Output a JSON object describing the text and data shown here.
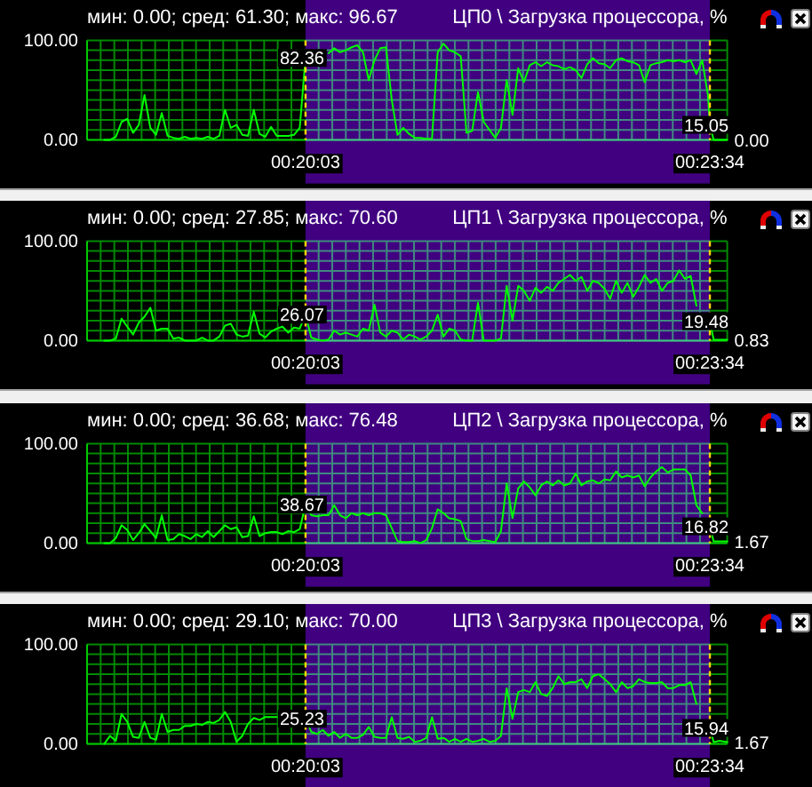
{
  "chart_data": [
    {
      "type": "line",
      "title": "ЦП0 \\ Загрузка процессора, %",
      "subtitle": "мин: 0.00; сред: 61.30; макс: 96.67",
      "color": "#00ff00",
      "x": [
        0.305,
        0.30583,
        0.30667,
        0.3075,
        0.30833,
        0.30917,
        0.31,
        0.31083,
        0.31167,
        0.3125,
        0.31333,
        0.31417,
        0.315,
        0.31583,
        0.31667,
        0.3175,
        0.31833,
        0.31917,
        0.32,
        0.32083,
        0.32167,
        0.3225,
        0.32333,
        0.32417,
        0.325,
        0.32583,
        0.32667,
        0.3275,
        0.32833,
        0.32917,
        0.33,
        0.33083,
        0.33167,
        0.3325,
        0.33333,
        0.33417,
        0.335,
        0.33583,
        0.33667,
        0.3375,
        0.33833,
        0.33917,
        0.34,
        0.34083,
        0.34167,
        0.3425,
        0.34333,
        0.34417,
        0.345,
        0.34583,
        0.34667,
        0.3475,
        0.34833,
        0.34917,
        0.35,
        0.35083,
        0.35167,
        0.3525,
        0.35333,
        0.35417,
        0.355,
        0.35583,
        0.35667,
        0.3575,
        0.35833,
        0.35917,
        0.36,
        0.36083,
        0.36167,
        0.3625,
        0.36333,
        0.36417,
        0.365,
        0.36583,
        0.36667,
        0.3675,
        0.36833,
        0.36917,
        0.37,
        0.37083,
        0.37167,
        0.3725,
        0.37333,
        0.37417,
        0.375,
        0.37583,
        0.37667,
        0.3775,
        0.37833,
        0.37917,
        0.38,
        0.38083,
        0.38167,
        0.3825,
        0.38333,
        0.38417,
        0.385,
        0.38583,
        0.38667,
        0.3875,
        0.38833,
        0.38917,
        0.39,
        0.39083,
        0.39167,
        0.3925,
        0.39278,
        0.39333,
        0.39417,
        0.3953
      ],
      "values": [
        0,
        0,
        3,
        18,
        21,
        7,
        15,
        45,
        12,
        5,
        27,
        4,
        2,
        1,
        3,
        1,
        2,
        1,
        3,
        1,
        4,
        30,
        12,
        15,
        5,
        4,
        30,
        6,
        3,
        13,
        4,
        4,
        4,
        5,
        12,
        82.36,
        null,
        null,
        null,
        87,
        92,
        88,
        90,
        93,
        95,
        88,
        60,
        80,
        92,
        93,
        40,
        5,
        12,
        6,
        2,
        2,
        1,
        1,
        88,
        96.67,
        90,
        88,
        84,
        7,
        9,
        48,
        18,
        10,
        2,
        12,
        60,
        25,
        72,
        58,
        75,
        78,
        74,
        78,
        75,
        74,
        71,
        73,
        70,
        62,
        76,
        82,
        77,
        76,
        72,
        80,
        82,
        79,
        78,
        75,
        58,
        75,
        77,
        78,
        80,
        79,
        80,
        78,
        80,
        66,
        80,
        45,
        15.05,
        0,
        0,
        0
      ],
      "xlim": [
        0.3025,
        0.3953
      ],
      "xticks": [
        {
          "value": 0.3025,
          "label": null
        },
        {
          "value": 0.30447,
          "label": null
        },
        {
          "value": 0.30645,
          "label": null
        },
        {
          "value": 0.30842,
          "label": null
        },
        {
          "value": 0.3104,
          "label": null
        },
        {
          "value": 0.31237,
          "label": null
        },
        {
          "value": 0.31435,
          "label": null
        },
        {
          "value": 0.31632,
          "label": null
        },
        {
          "value": 0.3183,
          "label": null
        },
        {
          "value": 0.32027,
          "label": null
        },
        {
          "value": 0.32224,
          "label": null
        },
        {
          "value": 0.32422,
          "label": null
        },
        {
          "value": 0.32619,
          "label": null
        },
        {
          "value": 0.32817,
          "label": null
        },
        {
          "value": 0.33014,
          "label": null
        },
        {
          "value": 0.33212,
          "label": null
        },
        {
          "value": 0.33607,
          "label": null
        },
        {
          "value": 0.33804,
          "label": null
        },
        {
          "value": 0.34001,
          "label": null
        },
        {
          "value": 0.34199,
          "label": null
        },
        {
          "value": 0.34396,
          "label": null
        },
        {
          "value": 0.34594,
          "label": null
        },
        {
          "value": 0.34791,
          "label": null
        },
        {
          "value": 0.34989,
          "label": null
        },
        {
          "value": 0.35186,
          "label": null
        },
        {
          "value": 0.35384,
          "label": null
        },
        {
          "value": 0.35581,
          "label": null
        },
        {
          "value": 0.35779,
          "label": null
        },
        {
          "value": 0.35976,
          "label": null
        },
        {
          "value": 0.36173,
          "label": null
        },
        {
          "value": 0.36371,
          "label": null
        },
        {
          "value": 0.36568,
          "label": null
        },
        {
          "value": 0.36766,
          "label": null
        },
        {
          "value": 0.36963,
          "label": null
        },
        {
          "value": 0.37161,
          "label": null
        },
        {
          "value": 0.37358,
          "label": null
        },
        {
          "value": 0.37556,
          "label": null
        },
        {
          "value": 0.37753,
          "label": null
        },
        {
          "value": 0.3795,
          "label": null
        },
        {
          "value": 0.38148,
          "label": null
        },
        {
          "value": 0.38345,
          "label": null
        },
        {
          "value": 0.38543,
          "label": null
        },
        {
          "value": 0.3874,
          "label": null
        },
        {
          "value": 0.38938,
          "label": null
        },
        {
          "value": 0.39135,
          "label": null
        },
        {
          "value": 0.3953,
          "label": null
        }
      ],
      "ylim": [
        0,
        100
      ],
      "yticks": [
        {
          "value": 0,
          "label": "0.00"
        },
        {
          "value": 10,
          "label": null
        },
        {
          "value": 20,
          "label": null
        },
        {
          "value": 30,
          "label": null
        },
        {
          "value": 40,
          "label": null
        },
        {
          "value": 50,
          "label": null
        },
        {
          "value": 60,
          "label": null
        },
        {
          "value": 70,
          "label": null
        },
        {
          "value": 80,
          "label": null
        },
        {
          "value": 90,
          "label": null
        },
        {
          "value": 100,
          "label": "100.00"
        }
      ],
      "grid": true,
      "tick_labels": "y",
      "bands": [
        {
          "axis": "x",
          "from": 0.33417,
          "to": 0.39278,
          "color": "#400080"
        }
      ],
      "ref_lines": [
        {
          "axis": "x",
          "value": 0.33417,
          "label": "00:20:03",
          "color": "#ffd700",
          "line_style": "dashed"
        },
        {
          "axis": "x",
          "value": 0.39278,
          "label": "00:23:34",
          "color": "#ffd700",
          "line_style": "dashed"
        }
      ],
      "annotations": [
        {
          "text": "82.36",
          "x": 0.33417,
          "y": 82.36
        },
        {
          "text": "15.05",
          "x": 0.39278,
          "y": 15.05
        },
        {
          "text": "0.00",
          "x": 0.3953,
          "y": 0
        }
      ]
    },
    {
      "type": "line",
      "title": "ЦП1 \\ Загрузка процессора, %",
      "subtitle": "мин: 0.00; сред: 27.85; макс: 70.60",
      "color": "#00ff00",
      "x": [
        0.305,
        0.30583,
        0.30667,
        0.3075,
        0.30833,
        0.30917,
        0.31,
        0.31083,
        0.31167,
        0.3125,
        0.31333,
        0.31417,
        0.315,
        0.31583,
        0.31667,
        0.3175,
        0.31833,
        0.31917,
        0.32,
        0.32083,
        0.32167,
        0.3225,
        0.32333,
        0.32417,
        0.325,
        0.32583,
        0.32667,
        0.3275,
        0.32833,
        0.32917,
        0.33,
        0.33083,
        0.33167,
        0.3325,
        0.33333,
        0.33417,
        0.335,
        0.33583,
        0.33667,
        0.3375,
        0.33833,
        0.33917,
        0.34,
        0.34083,
        0.34167,
        0.3425,
        0.34333,
        0.34417,
        0.345,
        0.34583,
        0.34667,
        0.3475,
        0.34833,
        0.34917,
        0.35,
        0.35083,
        0.35167,
        0.3525,
        0.35333,
        0.35417,
        0.355,
        0.35583,
        0.35667,
        0.3575,
        0.35833,
        0.35917,
        0.36,
        0.36083,
        0.36167,
        0.3625,
        0.36333,
        0.36417,
        0.365,
        0.36583,
        0.36667,
        0.3675,
        0.36833,
        0.36917,
        0.37,
        0.37083,
        0.37167,
        0.3725,
        0.37333,
        0.37417,
        0.375,
        0.37583,
        0.37667,
        0.3775,
        0.37833,
        0.37917,
        0.38,
        0.38083,
        0.38167,
        0.3825,
        0.38333,
        0.38417,
        0.385,
        0.38583,
        0.38667,
        0.3875,
        0.38833,
        0.38917,
        0.39,
        0.39083,
        0.39167,
        0.3925,
        0.39278,
        0.39333,
        0.39417,
        0.3953
      ],
      "values": [
        0,
        0,
        2,
        22,
        14,
        6,
        18,
        24,
        33,
        10,
        12,
        12,
        2,
        3,
        0,
        0,
        0,
        3,
        0,
        0,
        4,
        15,
        17,
        6,
        4,
        5,
        29,
        7,
        3,
        9,
        12,
        14,
        8,
        13,
        12,
        26.07,
        3,
        1,
        0,
        1,
        10,
        6,
        8,
        6,
        4,
        12,
        10,
        36,
        8,
        4,
        10,
        8,
        1,
        6,
        4,
        1,
        4,
        10,
        26,
        4,
        12,
        10,
        1,
        0,
        0,
        38,
        0,
        0,
        0,
        2,
        55,
        20,
        55,
        50,
        40,
        53,
        48,
        54,
        50,
        58,
        62,
        66,
        60,
        64,
        50,
        60,
        58,
        52,
        42,
        60,
        48,
        58,
        44,
        54,
        66,
        58,
        62,
        50,
        58,
        60,
        70.6,
        62,
        65,
        35,
        null,
        null,
        19.48,
        0.83,
        0.83,
        0.83
      ],
      "xlim": [
        0.3025,
        0.3953
      ],
      "xticks": [
        {
          "value": 0.3025,
          "label": null
        },
        {
          "value": 0.30447,
          "label": null
        },
        {
          "value": 0.30645,
          "label": null
        },
        {
          "value": 0.30842,
          "label": null
        },
        {
          "value": 0.3104,
          "label": null
        },
        {
          "value": 0.31237,
          "label": null
        },
        {
          "value": 0.31435,
          "label": null
        },
        {
          "value": 0.31632,
          "label": null
        },
        {
          "value": 0.3183,
          "label": null
        },
        {
          "value": 0.32027,
          "label": null
        },
        {
          "value": 0.32224,
          "label": null
        },
        {
          "value": 0.32422,
          "label": null
        },
        {
          "value": 0.32619,
          "label": null
        },
        {
          "value": 0.32817,
          "label": null
        },
        {
          "value": 0.33014,
          "label": null
        },
        {
          "value": 0.33212,
          "label": null
        },
        {
          "value": 0.33607,
          "label": null
        },
        {
          "value": 0.33804,
          "label": null
        },
        {
          "value": 0.34001,
          "label": null
        },
        {
          "value": 0.34199,
          "label": null
        },
        {
          "value": 0.34396,
          "label": null
        },
        {
          "value": 0.34594,
          "label": null
        },
        {
          "value": 0.34791,
          "label": null
        },
        {
          "value": 0.34989,
          "label": null
        },
        {
          "value": 0.35186,
          "label": null
        },
        {
          "value": 0.35384,
          "label": null
        },
        {
          "value": 0.35581,
          "label": null
        },
        {
          "value": 0.35779,
          "label": null
        },
        {
          "value": 0.35976,
          "label": null
        },
        {
          "value": 0.36173,
          "label": null
        },
        {
          "value": 0.36371,
          "label": null
        },
        {
          "value": 0.36568,
          "label": null
        },
        {
          "value": 0.36766,
          "label": null
        },
        {
          "value": 0.36963,
          "label": null
        },
        {
          "value": 0.37161,
          "label": null
        },
        {
          "value": 0.37358,
          "label": null
        },
        {
          "value": 0.37556,
          "label": null
        },
        {
          "value": 0.37753,
          "label": null
        },
        {
          "value": 0.3795,
          "label": null
        },
        {
          "value": 0.38148,
          "label": null
        },
        {
          "value": 0.38345,
          "label": null
        },
        {
          "value": 0.38543,
          "label": null
        },
        {
          "value": 0.3874,
          "label": null
        },
        {
          "value": 0.38938,
          "label": null
        },
        {
          "value": 0.39135,
          "label": null
        },
        {
          "value": 0.3953,
          "label": null
        }
      ],
      "ylim": [
        0,
        100
      ],
      "yticks": [
        {
          "value": 0,
          "label": "0.00"
        },
        {
          "value": 10,
          "label": null
        },
        {
          "value": 20,
          "label": null
        },
        {
          "value": 30,
          "label": null
        },
        {
          "value": 40,
          "label": null
        },
        {
          "value": 50,
          "label": null
        },
        {
          "value": 60,
          "label": null
        },
        {
          "value": 70,
          "label": null
        },
        {
          "value": 80,
          "label": null
        },
        {
          "value": 90,
          "label": null
        },
        {
          "value": 100,
          "label": "100.00"
        }
      ],
      "grid": true,
      "tick_labels": "y",
      "bands": [
        {
          "axis": "x",
          "from": 0.33417,
          "to": 0.39278,
          "color": "#400080"
        }
      ],
      "ref_lines": [
        {
          "axis": "x",
          "value": 0.33417,
          "label": "00:20:03",
          "color": "#ffd700",
          "line_style": "dashed"
        },
        {
          "axis": "x",
          "value": 0.39278,
          "label": "00:23:34",
          "color": "#ffd700",
          "line_style": "dashed"
        }
      ],
      "annotations": [
        {
          "text": "26.07",
          "x": 0.33417,
          "y": 26.07
        },
        {
          "text": "19.48",
          "x": 0.39278,
          "y": 19.48
        },
        {
          "text": "0.83",
          "x": 0.3953,
          "y": 0.83
        }
      ]
    },
    {
      "type": "line",
      "title": "ЦП2 \\ Загрузка процессора, %",
      "subtitle": "мин: 0.00; сред: 36.68; макс: 76.48",
      "color": "#00ff00",
      "x": [
        0.305,
        0.30583,
        0.30667,
        0.3075,
        0.30833,
        0.30917,
        0.31,
        0.31083,
        0.31167,
        0.3125,
        0.31333,
        0.31417,
        0.315,
        0.31583,
        0.31667,
        0.3175,
        0.31833,
        0.31917,
        0.32,
        0.32083,
        0.32167,
        0.3225,
        0.32333,
        0.32417,
        0.325,
        0.32583,
        0.32667,
        0.3275,
        0.32833,
        0.32917,
        0.33,
        0.33083,
        0.33167,
        0.3325,
        0.33333,
        0.33417,
        0.335,
        0.33583,
        0.33667,
        0.3375,
        0.33833,
        0.33917,
        0.34,
        0.34083,
        0.34167,
        0.3425,
        0.34333,
        0.34417,
        0.345,
        0.34583,
        0.34667,
        0.3475,
        0.34833,
        0.34917,
        0.35,
        0.35083,
        0.35167,
        0.3525,
        0.35333,
        0.35417,
        0.355,
        0.35583,
        0.35667,
        0.3575,
        0.35833,
        0.35917,
        0.36,
        0.36083,
        0.36167,
        0.3625,
        0.36333,
        0.36417,
        0.365,
        0.36583,
        0.36667,
        0.3675,
        0.36833,
        0.36917,
        0.37,
        0.37083,
        0.37167,
        0.3725,
        0.37333,
        0.37417,
        0.375,
        0.37583,
        0.37667,
        0.3775,
        0.37833,
        0.37917,
        0.38,
        0.38083,
        0.38167,
        0.3825,
        0.38333,
        0.38417,
        0.385,
        0.38583,
        0.38667,
        0.3875,
        0.38833,
        0.38917,
        0.39,
        0.39083,
        0.39167,
        0.3925,
        0.39278,
        0.39333,
        0.39417,
        0.3953
      ],
      "values": [
        0,
        0,
        5,
        18,
        13,
        3,
        10,
        19,
        12,
        5,
        28,
        3,
        4,
        9,
        7,
        4,
        9,
        6,
        12,
        6,
        12,
        18,
        14,
        16,
        6,
        7,
        27,
        7,
        10,
        11,
        11,
        9,
        12,
        11,
        14,
        38.67,
        28,
        27,
        28,
        28,
        38,
        28,
        25,
        30,
        28,
        30,
        28,
        30,
        30,
        28,
        15,
        2,
        1,
        1,
        2,
        0,
        3,
        15,
        34,
        30,
        25,
        24,
        22,
        4,
        2,
        2,
        3,
        2,
        1,
        12,
        60,
        25,
        55,
        62,
        56,
        48,
        58,
        62,
        58,
        63,
        58,
        60,
        70,
        58,
        62,
        63,
        60,
        64,
        63,
        72,
        66,
        68,
        66,
        68,
        57,
        66,
        72,
        76.48,
        71,
        74,
        74,
        74,
        68,
        38,
        30,
        null,
        16.82,
        1.67,
        1.67,
        1.67
      ],
      "xlim": [
        0.3025,
        0.3953
      ],
      "xticks": [
        {
          "value": 0.3025,
          "label": null
        },
        {
          "value": 0.30447,
          "label": null
        },
        {
          "value": 0.30645,
          "label": null
        },
        {
          "value": 0.30842,
          "label": null
        },
        {
          "value": 0.3104,
          "label": null
        },
        {
          "value": 0.31237,
          "label": null
        },
        {
          "value": 0.31435,
          "label": null
        },
        {
          "value": 0.31632,
          "label": null
        },
        {
          "value": 0.3183,
          "label": null
        },
        {
          "value": 0.32027,
          "label": null
        },
        {
          "value": 0.32224,
          "label": null
        },
        {
          "value": 0.32422,
          "label": null
        },
        {
          "value": 0.32619,
          "label": null
        },
        {
          "value": 0.32817,
          "label": null
        },
        {
          "value": 0.33014,
          "label": null
        },
        {
          "value": 0.33212,
          "label": null
        },
        {
          "value": 0.33607,
          "label": null
        },
        {
          "value": 0.33804,
          "label": null
        },
        {
          "value": 0.34001,
          "label": null
        },
        {
          "value": 0.34199,
          "label": null
        },
        {
          "value": 0.34396,
          "label": null
        },
        {
          "value": 0.34594,
          "label": null
        },
        {
          "value": 0.34791,
          "label": null
        },
        {
          "value": 0.34989,
          "label": null
        },
        {
          "value": 0.35186,
          "label": null
        },
        {
          "value": 0.35384,
          "label": null
        },
        {
          "value": 0.35581,
          "label": null
        },
        {
          "value": 0.35779,
          "label": null
        },
        {
          "value": 0.35976,
          "label": null
        },
        {
          "value": 0.36173,
          "label": null
        },
        {
          "value": 0.36371,
          "label": null
        },
        {
          "value": 0.36568,
          "label": null
        },
        {
          "value": 0.36766,
          "label": null
        },
        {
          "value": 0.36963,
          "label": null
        },
        {
          "value": 0.37161,
          "label": null
        },
        {
          "value": 0.37358,
          "label": null
        },
        {
          "value": 0.37556,
          "label": null
        },
        {
          "value": 0.37753,
          "label": null
        },
        {
          "value": 0.3795,
          "label": null
        },
        {
          "value": 0.38148,
          "label": null
        },
        {
          "value": 0.38345,
          "label": null
        },
        {
          "value": 0.38543,
          "label": null
        },
        {
          "value": 0.3874,
          "label": null
        },
        {
          "value": 0.38938,
          "label": null
        },
        {
          "value": 0.39135,
          "label": null
        },
        {
          "value": 0.3953,
          "label": null
        }
      ],
      "ylim": [
        0,
        100
      ],
      "yticks": [
        {
          "value": 0,
          "label": "0.00"
        },
        {
          "value": 10,
          "label": null
        },
        {
          "value": 20,
          "label": null
        },
        {
          "value": 30,
          "label": null
        },
        {
          "value": 40,
          "label": null
        },
        {
          "value": 50,
          "label": null
        },
        {
          "value": 60,
          "label": null
        },
        {
          "value": 70,
          "label": null
        },
        {
          "value": 80,
          "label": null
        },
        {
          "value": 90,
          "label": null
        },
        {
          "value": 100,
          "label": "100.00"
        }
      ],
      "grid": true,
      "tick_labels": "y",
      "bands": [
        {
          "axis": "x",
          "from": 0.33417,
          "to": 0.39278,
          "color": "#400080"
        }
      ],
      "ref_lines": [
        {
          "axis": "x",
          "value": 0.33417,
          "label": "00:20:03",
          "color": "#ffd700",
          "line_style": "dashed"
        },
        {
          "axis": "x",
          "value": 0.39278,
          "label": "00:23:34",
          "color": "#ffd700",
          "line_style": "dashed"
        }
      ],
      "annotations": [
        {
          "text": "38.67",
          "x": 0.33417,
          "y": 38.67
        },
        {
          "text": "16.82",
          "x": 0.39278,
          "y": 16.82
        },
        {
          "text": "1.67",
          "x": 0.3953,
          "y": 1.67
        }
      ]
    },
    {
      "type": "line",
      "title": "ЦП3 \\ Загрузка процессора, %",
      "subtitle": "мин: 0.00; сред: 29.10; макс: 70.00",
      "color": "#00ff00",
      "x": [
        0.305,
        0.30583,
        0.30667,
        0.3075,
        0.30833,
        0.30917,
        0.31,
        0.31083,
        0.31167,
        0.3125,
        0.31333,
        0.31417,
        0.315,
        0.31583,
        0.31667,
        0.3175,
        0.31833,
        0.31917,
        0.32,
        0.32083,
        0.32167,
        0.3225,
        0.32333,
        0.32417,
        0.325,
        0.32583,
        0.32667,
        0.3275,
        0.32833,
        0.32917,
        0.33,
        0.33083,
        0.33167,
        0.3325,
        0.33333,
        0.33417,
        0.335,
        0.33583,
        0.33667,
        0.3375,
        0.33833,
        0.33917,
        0.34,
        0.34083,
        0.34167,
        0.3425,
        0.34333,
        0.34417,
        0.345,
        0.34583,
        0.34667,
        0.3475,
        0.34833,
        0.34917,
        0.35,
        0.35083,
        0.35167,
        0.3525,
        0.35333,
        0.35417,
        0.355,
        0.35583,
        0.35667,
        0.3575,
        0.35833,
        0.35917,
        0.36,
        0.36083,
        0.36167,
        0.3625,
        0.36333,
        0.36417,
        0.365,
        0.36583,
        0.36667,
        0.3675,
        0.36833,
        0.36917,
        0.37,
        0.37083,
        0.37167,
        0.3725,
        0.37333,
        0.37417,
        0.375,
        0.37583,
        0.37667,
        0.3775,
        0.37833,
        0.37917,
        0.38,
        0.38083,
        0.38167,
        0.3825,
        0.38333,
        0.38417,
        0.385,
        0.38583,
        0.38667,
        0.3875,
        0.38833,
        0.38917,
        0.39,
        0.39083,
        0.39167,
        0.3925,
        0.39278,
        0.39333,
        0.39417,
        0.3953
      ],
      "values": [
        0,
        8,
        3,
        30,
        22,
        7,
        6,
        22,
        6,
        4,
        30,
        12,
        14,
        14,
        18,
        18,
        20,
        19,
        22,
        21,
        24,
        32,
        22,
        2,
        8,
        20,
        26,
        24,
        27,
        27,
        27,
        null,
        null,
        null,
        null,
        25.23,
        12,
        10,
        14,
        8,
        12,
        6,
        10,
        6,
        6,
        9,
        17,
        7,
        6,
        6,
        27,
        6,
        5,
        7,
        2,
        3,
        6,
        27,
        5,
        6,
        2,
        5,
        2,
        5,
        2,
        3,
        5,
        2,
        3,
        8,
        56,
        25,
        52,
        54,
        52,
        62,
        50,
        48,
        56,
        68,
        60,
        62,
        62,
        65,
        56,
        68,
        70,
        65,
        60,
        52,
        62,
        56,
        58,
        65,
        62,
        61,
        61,
        62,
        56,
        56,
        59,
        59,
        62,
        40,
        null,
        null,
        15.94,
        1.67,
        3,
        1.67
      ],
      "xlim": [
        0.3025,
        0.3953
      ],
      "xticks": [
        {
          "value": 0.3025,
          "label": null
        },
        {
          "value": 0.30447,
          "label": null
        },
        {
          "value": 0.30645,
          "label": null
        },
        {
          "value": 0.30842,
          "label": null
        },
        {
          "value": 0.3104,
          "label": null
        },
        {
          "value": 0.31237,
          "label": null
        },
        {
          "value": 0.31435,
          "label": null
        },
        {
          "value": 0.31632,
          "label": null
        },
        {
          "value": 0.3183,
          "label": null
        },
        {
          "value": 0.32027,
          "label": null
        },
        {
          "value": 0.32224,
          "label": null
        },
        {
          "value": 0.32422,
          "label": null
        },
        {
          "value": 0.32619,
          "label": null
        },
        {
          "value": 0.32817,
          "label": null
        },
        {
          "value": 0.33014,
          "label": null
        },
        {
          "value": 0.33212,
          "label": null
        },
        {
          "value": 0.33607,
          "label": null
        },
        {
          "value": 0.33804,
          "label": null
        },
        {
          "value": 0.34001,
          "label": null
        },
        {
          "value": 0.34199,
          "label": null
        },
        {
          "value": 0.34396,
          "label": null
        },
        {
          "value": 0.34594,
          "label": null
        },
        {
          "value": 0.34791,
          "label": null
        },
        {
          "value": 0.34989,
          "label": null
        },
        {
          "value": 0.35186,
          "label": null
        },
        {
          "value": 0.35384,
          "label": null
        },
        {
          "value": 0.35581,
          "label": null
        },
        {
          "value": 0.35779,
          "label": null
        },
        {
          "value": 0.35976,
          "label": null
        },
        {
          "value": 0.36173,
          "label": null
        },
        {
          "value": 0.36371,
          "label": null
        },
        {
          "value": 0.36568,
          "label": null
        },
        {
          "value": 0.36766,
          "label": null
        },
        {
          "value": 0.36963,
          "label": null
        },
        {
          "value": 0.37161,
          "label": null
        },
        {
          "value": 0.37358,
          "label": null
        },
        {
          "value": 0.37556,
          "label": null
        },
        {
          "value": 0.37753,
          "label": null
        },
        {
          "value": 0.3795,
          "label": null
        },
        {
          "value": 0.38148,
          "label": null
        },
        {
          "value": 0.38345,
          "label": null
        },
        {
          "value": 0.38543,
          "label": null
        },
        {
          "value": 0.3874,
          "label": null
        },
        {
          "value": 0.38938,
          "label": null
        },
        {
          "value": 0.39135,
          "label": null
        },
        {
          "value": 0.3953,
          "label": null
        }
      ],
      "ylim": [
        0,
        100
      ],
      "yticks": [
        {
          "value": 0,
          "label": "0.00"
        },
        {
          "value": 10,
          "label": null
        },
        {
          "value": 20,
          "label": null
        },
        {
          "value": 30,
          "label": null
        },
        {
          "value": 40,
          "label": null
        },
        {
          "value": 50,
          "label": null
        },
        {
          "value": 60,
          "label": null
        },
        {
          "value": 70,
          "label": null
        },
        {
          "value": 80,
          "label": null
        },
        {
          "value": 90,
          "label": null
        },
        {
          "value": 100,
          "label": "100.00"
        }
      ],
      "grid": true,
      "tick_labels": "y",
      "bands": [
        {
          "axis": "x",
          "from": 0.33417,
          "to": 0.39278,
          "color": "#400080"
        }
      ],
      "ref_lines": [
        {
          "axis": "x",
          "value": 0.33417,
          "label": "00:20:03",
          "color": "#ffd700",
          "line_style": "dashed"
        },
        {
          "axis": "x",
          "value": 0.39278,
          "label": "00:23:34",
          "color": "#ffd700",
          "line_style": "dashed"
        }
      ],
      "annotations": [
        {
          "text": "25.23",
          "x": 0.33417,
          "y": 25.23
        },
        {
          "text": "15.94",
          "x": 0.39278,
          "y": 15.94
        },
        {
          "text": "1.67",
          "x": 0.3953,
          "y": 1.67
        }
      ]
    }
  ]
}
